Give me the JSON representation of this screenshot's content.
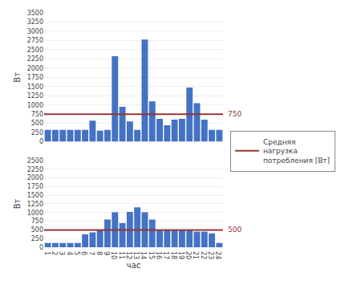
{
  "chart_data": [
    {
      "type": "bar",
      "categories": [
        1,
        2,
        3,
        4,
        5,
        6,
        7,
        8,
        9,
        10,
        11,
        12,
        13,
        14,
        15,
        16,
        17,
        18,
        19,
        20,
        21,
        22,
        23,
        24
      ],
      "values": [
        325,
        325,
        325,
        325,
        325,
        325,
        575,
        300,
        325,
        2325,
        950,
        550,
        325,
        2775,
        1100,
        625,
        450,
        600,
        625,
        1475,
        1050,
        600,
        325,
        325
      ],
      "color": "#4472C4",
      "average": {
        "value": 750,
        "color": "#943634",
        "name": "Средняя\nнагрузка\nпотребления [Вт]"
      },
      "ylabel": "Вт",
      "ylim": [
        0,
        3500
      ],
      "yticks": [
        0,
        250,
        500,
        750,
        1000,
        1250,
        1500,
        1750,
        2000,
        2250,
        2500,
        2750,
        3000,
        3250,
        3500
      ],
      "grid": true,
      "legend": "right",
      "tick_labels": "y"
    },
    {
      "type": "bar",
      "categories": [
        1,
        2,
        3,
        4,
        5,
        6,
        7,
        8,
        9,
        10,
        11,
        12,
        13,
        14,
        15,
        16,
        17,
        18,
        19,
        20,
        21,
        22,
        23,
        24
      ],
      "values": [
        125,
        125,
        125,
        125,
        125,
        375,
        430,
        500,
        800,
        1010,
        700,
        1020,
        1150,
        1010,
        800,
        500,
        500,
        500,
        500,
        500,
        450,
        450,
        400,
        125
      ],
      "color": "#4472C4",
      "average": {
        "value": 500,
        "color": "#943634"
      },
      "xlabel": "час",
      "ylabel": "Вт",
      "ylim": [
        0,
        2500
      ],
      "yticks": [
        0,
        250,
        500,
        750,
        1000,
        1250,
        1500,
        1750,
        2000,
        2250,
        2500
      ],
      "grid": true
    }
  ]
}
